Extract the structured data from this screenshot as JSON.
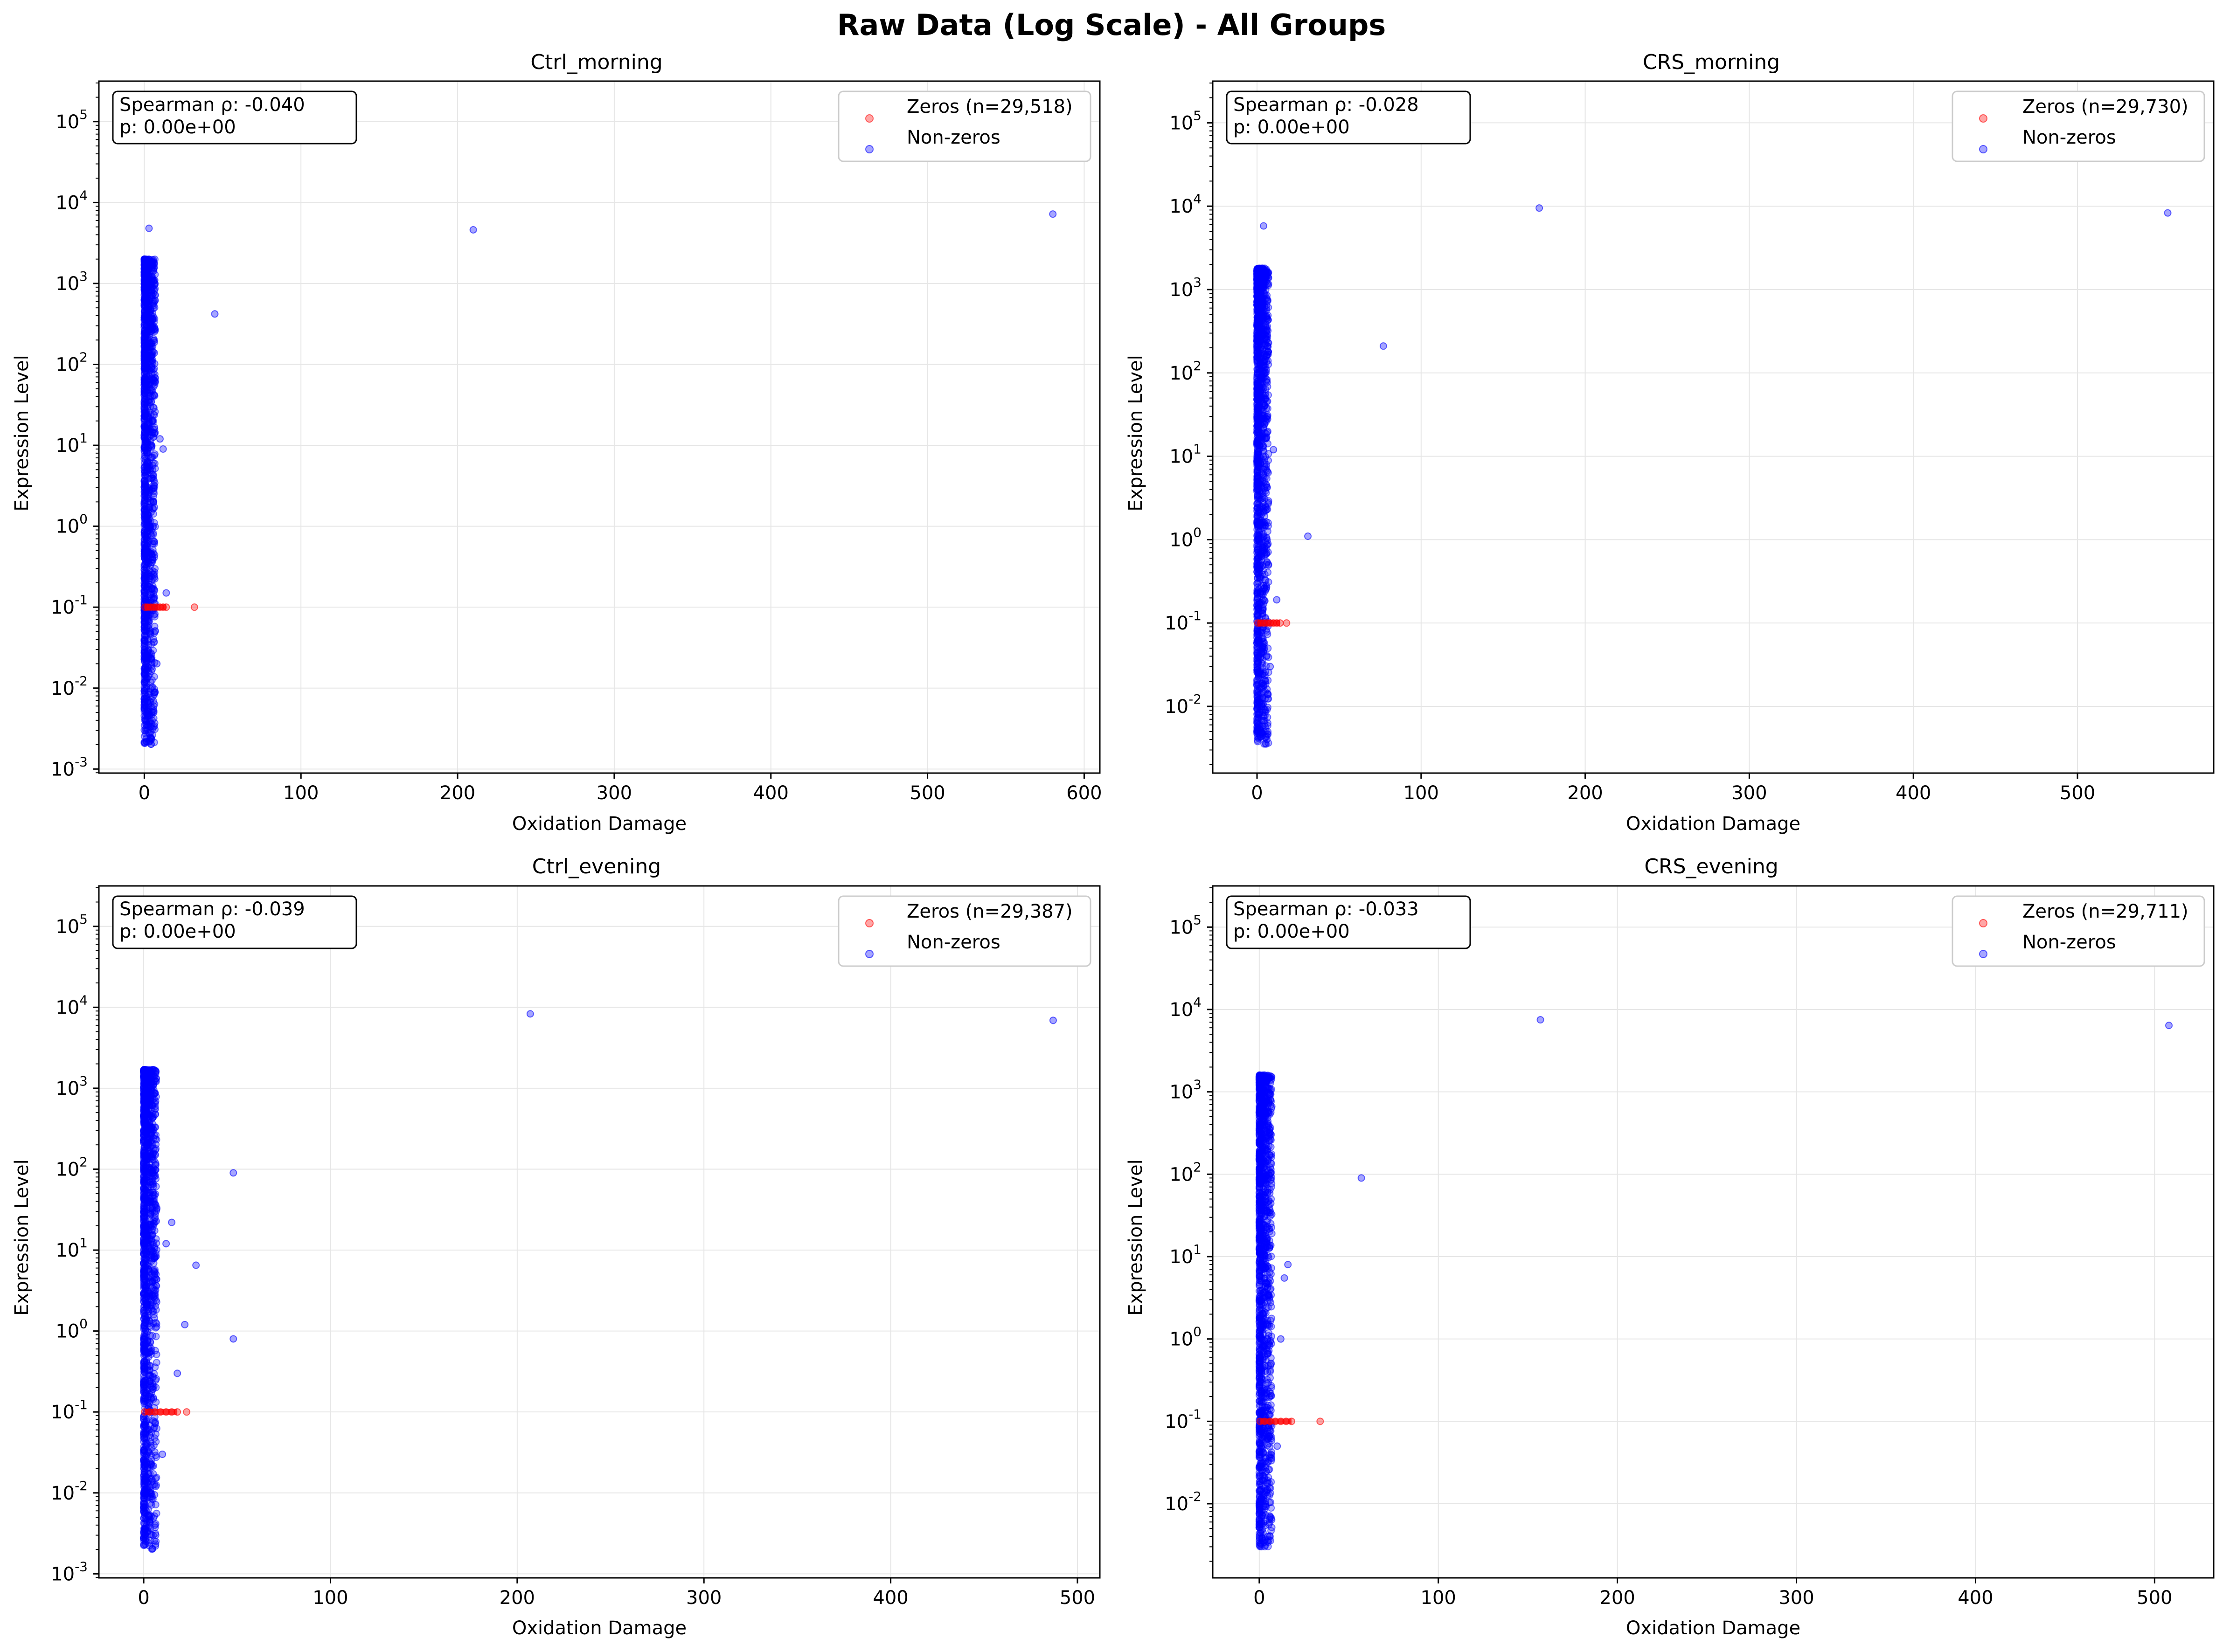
{
  "figure": {
    "title": "Raw Data (Log Scale) - All Groups"
  },
  "colors": {
    "zeros": "#ff0000",
    "nonzeros": "#0000ff",
    "grid": "#e6e6e6"
  },
  "chart_data": [
    {
      "type": "scatter",
      "title": "Ctrl_morning",
      "xlabel": "Oxidation Damage",
      "ylabel": "Expression Level",
      "yscale": "log",
      "xlim": [
        -29,
        610
      ],
      "ylim_log10": [
        -3.05,
        5.5
      ],
      "xticks": [
        0,
        100,
        200,
        300,
        400,
        500,
        600
      ],
      "yticks_exp": [
        -3,
        -2,
        -1,
        0,
        1,
        2,
        3,
        4,
        5
      ],
      "grid": true,
      "legend_position": "top-right",
      "stats": {
        "line1": "Spearman ρ: -0.040",
        "line2": "p: 0.00e+00"
      },
      "series": [
        {
          "name": "Zeros (n=29,518)",
          "color": "#ff0000",
          "x": [
            0.5,
            2,
            4,
            6,
            8,
            10,
            12,
            14,
            32
          ],
          "y": [
            0.1,
            0.1,
            0.1,
            0.1,
            0.1,
            0.1,
            0.1,
            0.1,
            0.1
          ]
        },
        {
          "name": "Non-zeros",
          "color": "#0000ff",
          "x": [
            3,
            210,
            580,
            45,
            10,
            12,
            14,
            8,
            6
          ],
          "y": [
            4800,
            4600,
            7200,
            420,
            12,
            9,
            0.15,
            0.02,
            0.005
          ]
        }
      ],
      "band": {
        "x_max": 7,
        "y_min": 0.002,
        "y_max": 2000
      }
    },
    {
      "type": "scatter",
      "title": "CRS_morning",
      "xlabel": "Oxidation Damage",
      "ylabel": "Expression Level",
      "yscale": "log",
      "xlim": [
        -27,
        583
      ],
      "ylim_log10": [
        -2.8,
        5.5
      ],
      "xticks": [
        0,
        100,
        200,
        300,
        400,
        500
      ],
      "yticks_exp": [
        -2,
        -1,
        0,
        1,
        2,
        3,
        4,
        5
      ],
      "grid": true,
      "legend_position": "top-right",
      "stats": {
        "line1": "Spearman ρ: -0.028",
        "line2": "p: 0.00e+00"
      },
      "series": [
        {
          "name": "Zeros (n=29,730)",
          "color": "#ff0000",
          "x": [
            0.5,
            2,
            4,
            6,
            8,
            10,
            12,
            14,
            18
          ],
          "y": [
            0.1,
            0.1,
            0.1,
            0.1,
            0.1,
            0.1,
            0.1,
            0.1,
            0.1
          ]
        },
        {
          "name": "Non-zeros",
          "color": "#0000ff",
          "x": [
            4,
            172,
            555,
            77,
            31,
            10,
            12,
            8,
            6
          ],
          "y": [
            5800,
            9500,
            8300,
            210,
            1.1,
            12,
            0.19,
            0.03,
            0.004
          ]
        }
      ],
      "band": {
        "x_max": 7,
        "y_min": 0.0035,
        "y_max": 1800
      }
    },
    {
      "type": "scatter",
      "title": "Ctrl_evening",
      "xlabel": "Oxidation Damage",
      "ylabel": "Expression Level",
      "yscale": "log",
      "xlim": [
        -24,
        512
      ],
      "ylim_log10": [
        -3.05,
        5.5
      ],
      "xticks": [
        0,
        100,
        200,
        300,
        400,
        500
      ],
      "yticks_exp": [
        -3,
        -2,
        -1,
        0,
        1,
        2,
        3,
        4,
        5
      ],
      "grid": true,
      "legend_position": "top-right",
      "stats": {
        "line1": "Spearman ρ: -0.039",
        "line2": "p: 0.00e+00"
      },
      "series": [
        {
          "name": "Zeros (n=29,387)",
          "color": "#ff0000",
          "x": [
            0.5,
            3,
            6,
            9,
            12,
            15,
            18,
            23
          ],
          "y": [
            0.1,
            0.1,
            0.1,
            0.1,
            0.1,
            0.1,
            0.1,
            0.1
          ]
        },
        {
          "name": "Non-zeros",
          "color": "#0000ff",
          "x": [
            207,
            487,
            48,
            28,
            22,
            48,
            15,
            12,
            18,
            10,
            6
          ],
          "y": [
            8300,
            6900,
            90,
            6.5,
            1.2,
            0.8,
            22,
            12,
            0.3,
            0.03,
            0.004
          ]
        }
      ],
      "band": {
        "x_max": 7,
        "y_min": 0.002,
        "y_max": 1700
      }
    },
    {
      "type": "scatter",
      "title": "CRS_evening",
      "xlabel": "Oxidation Damage",
      "ylabel": "Expression Level",
      "yscale": "log",
      "xlim": [
        -26,
        533
      ],
      "ylim_log10": [
        -2.9,
        5.5
      ],
      "xticks": [
        0,
        100,
        200,
        300,
        400,
        500
      ],
      "yticks_exp": [
        -2,
        -1,
        0,
        1,
        2,
        3,
        4,
        5
      ],
      "grid": true,
      "legend_position": "top-right",
      "stats": {
        "line1": "Spearman ρ: -0.033",
        "line2": "p: 0.00e+00"
      },
      "series": [
        {
          "name": "Zeros (n=29,711)",
          "color": "#ff0000",
          "x": [
            0.5,
            3,
            6,
            9,
            12,
            15,
            18,
            34
          ],
          "y": [
            0.1,
            0.1,
            0.1,
            0.1,
            0.1,
            0.1,
            0.1,
            0.1
          ]
        },
        {
          "name": "Non-zeros",
          "color": "#0000ff",
          "x": [
            157,
            508,
            57,
            14,
            16,
            12,
            10,
            6
          ],
          "y": [
            7500,
            6400,
            90,
            5.5,
            8,
            1,
            0.05,
            0.004
          ]
        }
      ],
      "band": {
        "x_max": 7,
        "y_min": 0.003,
        "y_max": 1600
      }
    }
  ]
}
